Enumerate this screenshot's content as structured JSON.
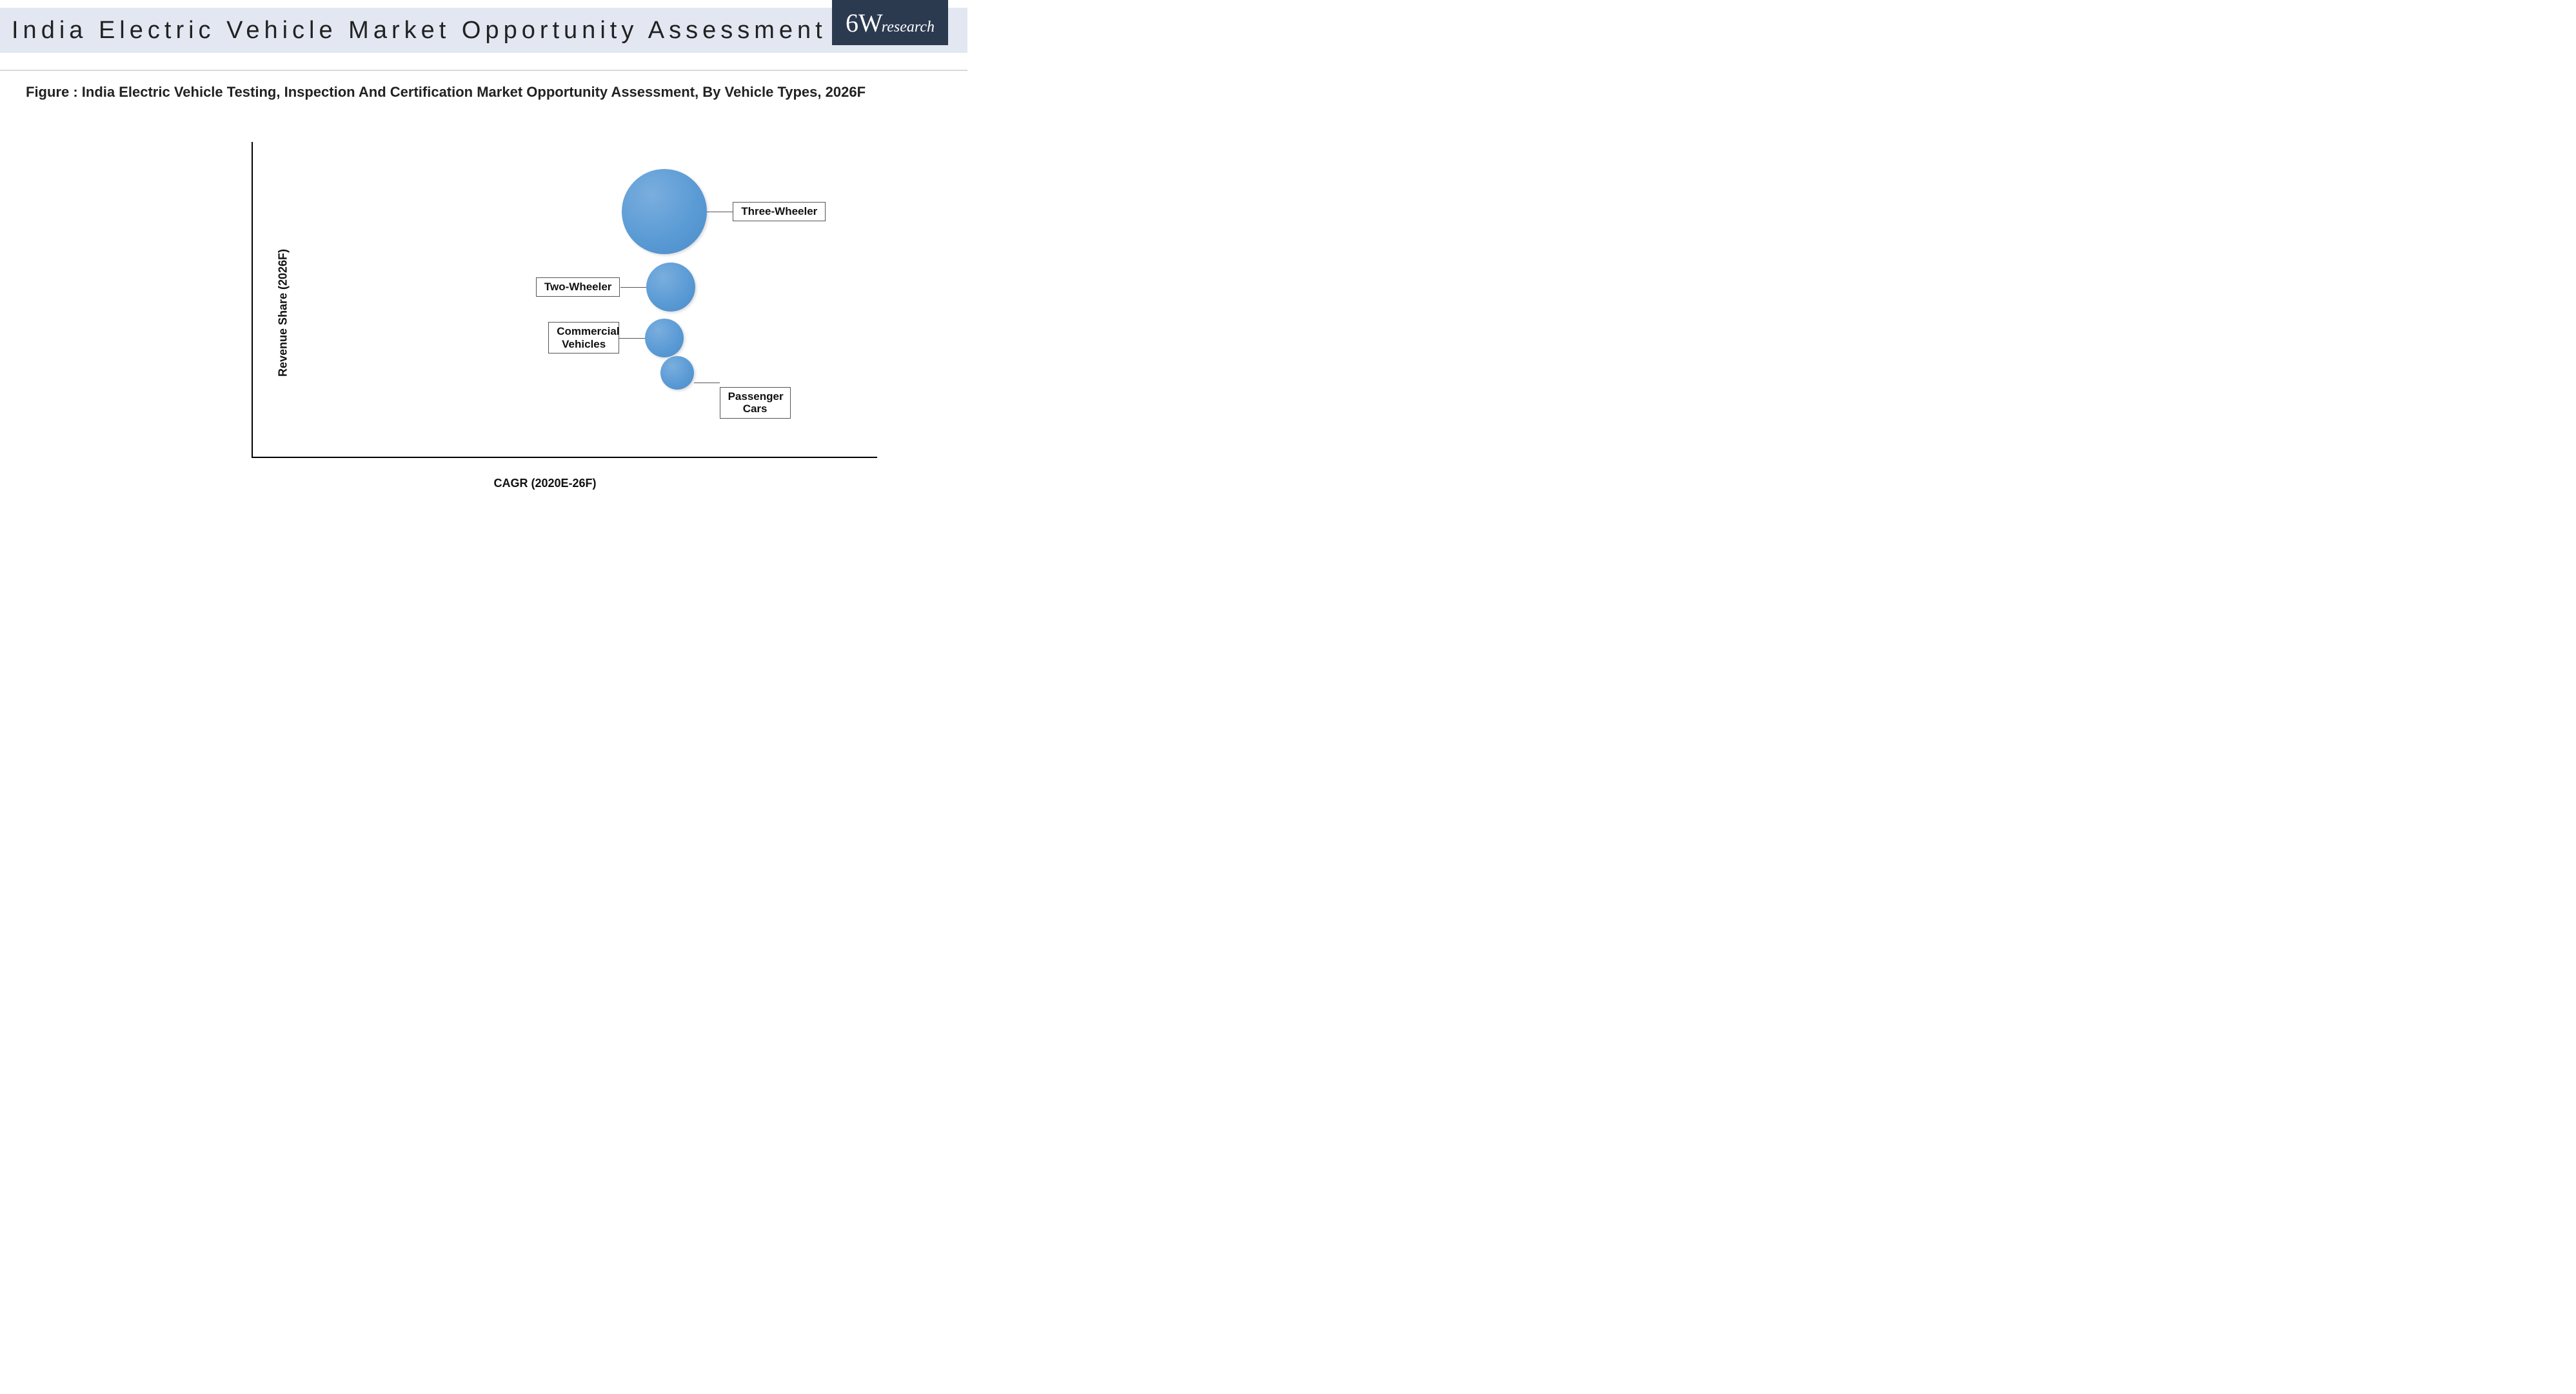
{
  "header": {
    "title": "India Electric Vehicle Market Opportunity Assessment",
    "background_color": "#e2e7f2",
    "title_fontsize": 38,
    "title_letter_spacing": 7
  },
  "logo": {
    "main": "6W",
    "sub": "research",
    "background_color": "#2b3a4f",
    "text_color": "#ffffff"
  },
  "figure": {
    "caption": "Figure : India Electric Vehicle Testing, Inspection And Certification Market Opportunity Assessment, By Vehicle Types, 2026F",
    "caption_fontsize": 22
  },
  "chart": {
    "type": "bubble",
    "x_axis_label": "CAGR (2020E-26F)",
    "y_axis_label": "Revenue Share (2026F)",
    "axis_label_fontsize": 18,
    "axis_color": "#000000",
    "background_color": "#ffffff",
    "plot_x_range": [
      0,
      100
    ],
    "plot_y_range": [
      0,
      100
    ],
    "bubble_fill_color": "#5b9bd5",
    "bubble_gradient_light": "#7aaede",
    "bubble_gradient_dark": "#4a8cc9",
    "callout_border_color": "#555555",
    "callout_fontsize": 17,
    "bubbles": [
      {
        "id": "three_wheeler",
        "label": "Three-Wheeler",
        "x": 66,
        "y": 78,
        "radius": 66,
        "label_side": "right",
        "label_lines": 1
      },
      {
        "id": "two_wheeler",
        "label": "Two-Wheeler",
        "x": 67,
        "y": 54,
        "radius": 38,
        "label_side": "left",
        "label_lines": 1
      },
      {
        "id": "commercial",
        "label": "Commercial\nVehicles",
        "x": 66,
        "y": 38,
        "radius": 30,
        "label_side": "left",
        "label_lines": 2
      },
      {
        "id": "passenger_cars",
        "label": "Passenger\nCars",
        "x": 68,
        "y": 27,
        "radius": 26,
        "label_side": "right",
        "label_lines": 2
      }
    ]
  }
}
